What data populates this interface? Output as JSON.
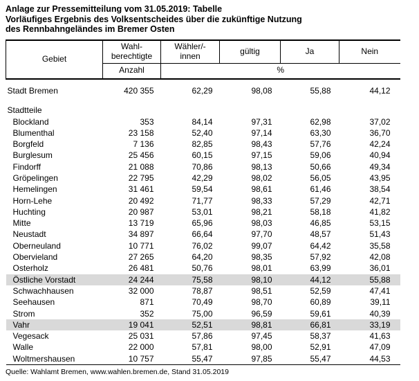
{
  "page": {
    "title": "Anlage zur Pressemitteilung vom 31.05.2019: Tabelle",
    "subtitle_line1": "Vorläufiges Ergebnis des Volksentscheides über die zukünftige Nutzung",
    "subtitle_line2": "des Rennbahngeländes im Bremer Osten",
    "source": "Quelle: Wahlamt Bremen, www.wahlen.bremen.de, Stand 31.05.2019"
  },
  "table": {
    "highlight_color": "#d9d9d9",
    "columns": {
      "gebiet": "Gebiet",
      "wahlberechtigte_line1": "Wahl-",
      "wahlberechtigte_line2": "berechtigte",
      "waehler_line1": "Wähler/-",
      "waehler_line2": "innen",
      "gueltig": "gültig",
      "ja": "Ja",
      "nein": "Nein",
      "anzahl": "Anzahl",
      "percent": "%"
    },
    "rows": [
      {
        "type": "total",
        "highlight": false,
        "gebiet": "Stadt Bremen",
        "wahlberechtigte": "420 355",
        "waehler": "62,29",
        "gueltig": "98,08",
        "ja": "55,88",
        "nein": "44,12"
      },
      {
        "type": "section",
        "highlight": false,
        "gebiet": "Stadtteile",
        "wahlberechtigte": "",
        "waehler": "",
        "gueltig": "",
        "ja": "",
        "nein": ""
      },
      {
        "type": "district",
        "highlight": false,
        "gebiet": "Blockland",
        "wahlberechtigte": "353",
        "waehler": "84,14",
        "gueltig": "97,31",
        "ja": "62,98",
        "nein": "37,02"
      },
      {
        "type": "district",
        "highlight": false,
        "gebiet": "Blumenthal",
        "wahlberechtigte": "23 158",
        "waehler": "52,40",
        "gueltig": "97,14",
        "ja": "63,30",
        "nein": "36,70"
      },
      {
        "type": "district",
        "highlight": false,
        "gebiet": "Borgfeld",
        "wahlberechtigte": "7 136",
        "waehler": "82,85",
        "gueltig": "98,43",
        "ja": "57,76",
        "nein": "42,24"
      },
      {
        "type": "district",
        "highlight": false,
        "gebiet": "Burglesum",
        "wahlberechtigte": "25 456",
        "waehler": "60,15",
        "gueltig": "97,15",
        "ja": "59,06",
        "nein": "40,94"
      },
      {
        "type": "district",
        "highlight": false,
        "gebiet": "Findorff",
        "wahlberechtigte": "21 088",
        "waehler": "70,86",
        "gueltig": "98,13",
        "ja": "50,66",
        "nein": "49,34"
      },
      {
        "type": "district",
        "highlight": false,
        "gebiet": "Gröpelingen",
        "wahlberechtigte": "22 795",
        "waehler": "42,29",
        "gueltig": "98,02",
        "ja": "56,05",
        "nein": "43,95"
      },
      {
        "type": "district",
        "highlight": false,
        "gebiet": "Hemelingen",
        "wahlberechtigte": "31 461",
        "waehler": "59,54",
        "gueltig": "98,61",
        "ja": "61,46",
        "nein": "38,54"
      },
      {
        "type": "district",
        "highlight": false,
        "gebiet": "Horn-Lehe",
        "wahlberechtigte": "20 492",
        "waehler": "71,77",
        "gueltig": "98,33",
        "ja": "57,29",
        "nein": "42,71"
      },
      {
        "type": "district",
        "highlight": false,
        "gebiet": "Huchting",
        "wahlberechtigte": "20 987",
        "waehler": "53,01",
        "gueltig": "98,21",
        "ja": "58,18",
        "nein": "41,82"
      },
      {
        "type": "district",
        "highlight": false,
        "gebiet": "Mitte",
        "wahlberechtigte": "13 719",
        "waehler": "65,96",
        "gueltig": "98,03",
        "ja": "46,85",
        "nein": "53,15"
      },
      {
        "type": "district",
        "highlight": false,
        "gebiet": "Neustadt",
        "wahlberechtigte": "34 897",
        "waehler": "66,64",
        "gueltig": "97,70",
        "ja": "48,57",
        "nein": "51,43"
      },
      {
        "type": "district",
        "highlight": false,
        "gebiet": "Oberneuland",
        "wahlberechtigte": "10 771",
        "waehler": "76,02",
        "gueltig": "99,07",
        "ja": "64,42",
        "nein": "35,58"
      },
      {
        "type": "district",
        "highlight": false,
        "gebiet": "Obervieland",
        "wahlberechtigte": "27 265",
        "waehler": "64,20",
        "gueltig": "98,35",
        "ja": "57,92",
        "nein": "42,08"
      },
      {
        "type": "district",
        "highlight": false,
        "gebiet": "Osterholz",
        "wahlberechtigte": "26 481",
        "waehler": "50,76",
        "gueltig": "98,01",
        "ja": "63,99",
        "nein": "36,01"
      },
      {
        "type": "district",
        "highlight": true,
        "gebiet": "Östliche Vorstadt",
        "wahlberechtigte": "24 244",
        "waehler": "75,58",
        "gueltig": "98,10",
        "ja": "44,12",
        "nein": "55,88"
      },
      {
        "type": "district",
        "highlight": false,
        "gebiet": "Schwachhausen",
        "wahlberechtigte": "32 000",
        "waehler": "78,87",
        "gueltig": "98,51",
        "ja": "52,59",
        "nein": "47,41"
      },
      {
        "type": "district",
        "highlight": false,
        "gebiet": "Seehausen",
        "wahlberechtigte": "871",
        "waehler": "70,49",
        "gueltig": "98,70",
        "ja": "60,89",
        "nein": "39,11"
      },
      {
        "type": "district",
        "highlight": false,
        "gebiet": "Strom",
        "wahlberechtigte": "352",
        "waehler": "75,00",
        "gueltig": "96,59",
        "ja": "59,61",
        "nein": "40,39"
      },
      {
        "type": "district",
        "highlight": true,
        "gebiet": "Vahr",
        "wahlberechtigte": "19 041",
        "waehler": "52,51",
        "gueltig": "98,81",
        "ja": "66,81",
        "nein": "33,19"
      },
      {
        "type": "district",
        "highlight": false,
        "gebiet": "Vegesack",
        "wahlberechtigte": "25 031",
        "waehler": "57,86",
        "gueltig": "97,45",
        "ja": "58,37",
        "nein": "41,63"
      },
      {
        "type": "district",
        "highlight": false,
        "gebiet": "Walle",
        "wahlberechtigte": "22 000",
        "waehler": "57,81",
        "gueltig": "98,00",
        "ja": "52,91",
        "nein": "47,09"
      },
      {
        "type": "district",
        "highlight": false,
        "gebiet": "Woltmershausen",
        "wahlberechtigte": "10 757",
        "waehler": "55,47",
        "gueltig": "97,85",
        "ja": "55,47",
        "nein": "44,53"
      }
    ]
  }
}
